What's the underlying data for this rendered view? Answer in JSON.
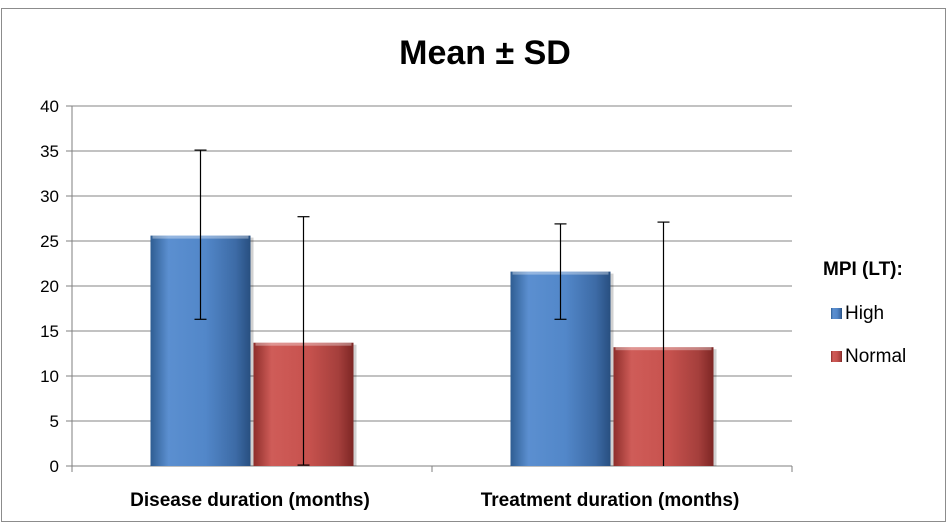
{
  "chart_data": {
    "type": "bar",
    "title": "Mean ± SD",
    "categories": [
      "Disease duration (months)",
      "Treatment duration (months)"
    ],
    "series": [
      {
        "name": "High",
        "values": [
          25.6,
          21.6
        ],
        "error_low": [
          16.3,
          16.3
        ],
        "error_high": [
          35.1,
          26.9
        ],
        "color": "#4f81bd"
      },
      {
        "name": "Normal",
        "values": [
          13.7,
          13.2
        ],
        "error_low": [
          0.1,
          0
        ],
        "error_high": [
          27.7,
          27.1
        ],
        "color": "#c0504d"
      }
    ],
    "ylim": [
      0,
      40
    ],
    "yticks": [
      "0",
      "5",
      "10",
      "15",
      "20",
      "25",
      "30",
      "35",
      "40"
    ],
    "grid": true,
    "legend": {
      "title": "MPI (LT):",
      "position": "right"
    }
  }
}
